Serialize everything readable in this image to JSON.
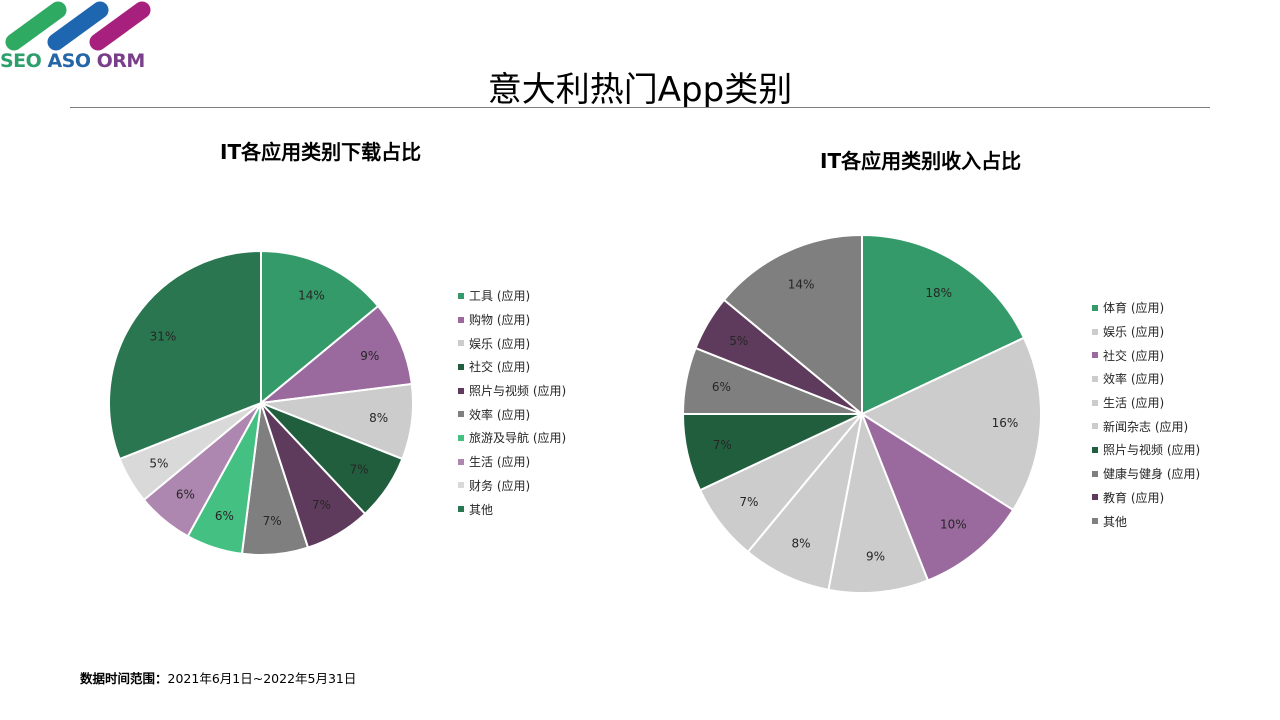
{
  "logo": {
    "text_parts": [
      "SEO",
      "ASO",
      "ORM"
    ],
    "bar_colors": [
      "#2eaa62",
      "#1f66b0",
      "#a8207e"
    ]
  },
  "page": {
    "title": "意大利热门App类别",
    "footer_label": "数据时间范围：",
    "footer_value": "2021年6月1日~2022年5月31日"
  },
  "chart_data": [
    {
      "type": "pie",
      "title": "IT各应用类别下载占比",
      "categories": [
        "工具 (应用)",
        "购物 (应用)",
        "娱乐 (应用)",
        "社交 (应用)",
        "照片与视频 (应用)",
        "效率 (应用)",
        "旅游及导航 (应用)",
        "生活 (应用)",
        "财务 (应用)",
        "其他"
      ],
      "values": [
        14,
        9,
        8,
        7,
        7,
        7,
        6,
        6,
        5,
        31
      ],
      "labels": [
        "14%",
        "9%",
        "8%",
        "7%",
        "7%",
        "7%",
        "6%",
        "6%",
        "5%",
        "31%"
      ],
      "colors": [
        "#359a69",
        "#9a6a9e",
        "#cccccc",
        "#215e3e",
        "#5e3b5c",
        "#7f7f7f",
        "#45c083",
        "#ae87b0",
        "#d9d9d9",
        "#2a7650"
      ],
      "legend_position": "right",
      "start_angle": 0,
      "direction": "clockwise"
    },
    {
      "type": "pie",
      "title": "IT各应用类别收入占比",
      "categories": [
        "体育 (应用)",
        "娱乐 (应用)",
        "社交 (应用)",
        "效率 (应用)",
        "生活 (应用)",
        "新闻杂志 (应用)",
        "照片与视频 (应用)",
        "健康与健身 (应用)",
        "教育 (应用)",
        "其他"
      ],
      "values": [
        18,
        16,
        10,
        9,
        8,
        7,
        7,
        6,
        5,
        14
      ],
      "labels": [
        "18%",
        "16%",
        "10%",
        "9%",
        "8%",
        "7%",
        "7%",
        "6%",
        "5%",
        "14%"
      ],
      "colors": [
        "#359a69",
        "#cccccc",
        "#9a6a9e",
        "#cccccc",
        "#cccccc",
        "#cccccc",
        "#215e3e",
        "#7f7f7f",
        "#5e3b5c",
        "#7f7f7f"
      ],
      "legend_position": "right",
      "start_angle": 0,
      "direction": "clockwise"
    }
  ]
}
